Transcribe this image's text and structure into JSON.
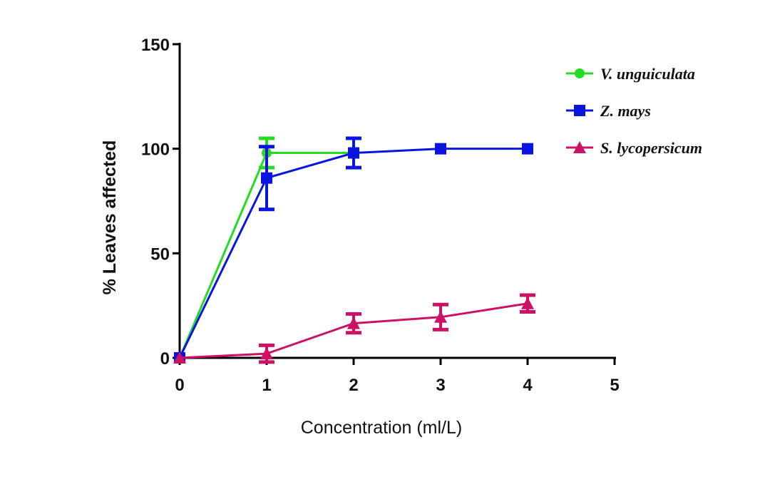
{
  "chart_data": {
    "type": "line",
    "title": "",
    "xlabel": "Concentration (ml/L)",
    "ylabel": "% Leaves affected",
    "xlim": [
      0,
      5
    ],
    "ylim": [
      0,
      150
    ],
    "xticks": [
      0,
      1,
      2,
      3,
      4,
      5
    ],
    "yticks": [
      0,
      50,
      100,
      150
    ],
    "grid": false,
    "legend_position": "top-right",
    "series": [
      {
        "name": "V. unguiculata",
        "color": "#22dd22",
        "marker": "circle",
        "x": [
          0,
          1,
          2
        ],
        "y": [
          0,
          98,
          98
        ],
        "error": [
          0,
          7,
          0
        ]
      },
      {
        "name": "Z. mays",
        "color": "#0a14e0",
        "marker": "square",
        "x": [
          0,
          1,
          2,
          3,
          4
        ],
        "y": [
          0,
          86,
          98,
          100,
          100
        ],
        "error": [
          0,
          15,
          7,
          0,
          0
        ]
      },
      {
        "name": "S. lycopersicum",
        "color": "#cc1166",
        "marker": "triangle",
        "x": [
          0,
          1,
          2,
          3,
          4
        ],
        "y": [
          0,
          2,
          16.5,
          19.5,
          26
        ],
        "error": [
          0,
          4,
          4.5,
          6,
          4
        ]
      }
    ]
  }
}
